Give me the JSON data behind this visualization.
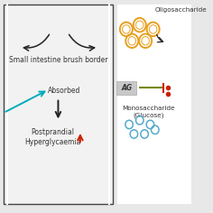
{
  "bg_color": "#e8e8e8",
  "panel_bg": "#f2f2f2",
  "arrow_color": "#222222",
  "cyan_color": "#00aabb",
  "red_color": "#cc2200",
  "oligo_color": "#e8a020",
  "glucose_color": "#55aacc",
  "ag_box_color": "#c8c8c8",
  "green_line_color": "#778800",
  "text_brush": "Small intestine brush border",
  "text_absorbed": "Absorbed",
  "text_post": "Postprandial\nHyperglycaemia",
  "text_oligo": "Oligosaccharide",
  "text_mono": "Monosaccharide\n(Glucose)",
  "ag_text": "AG",
  "label_fontsize": 5.5,
  "small_fontsize": 5.2
}
